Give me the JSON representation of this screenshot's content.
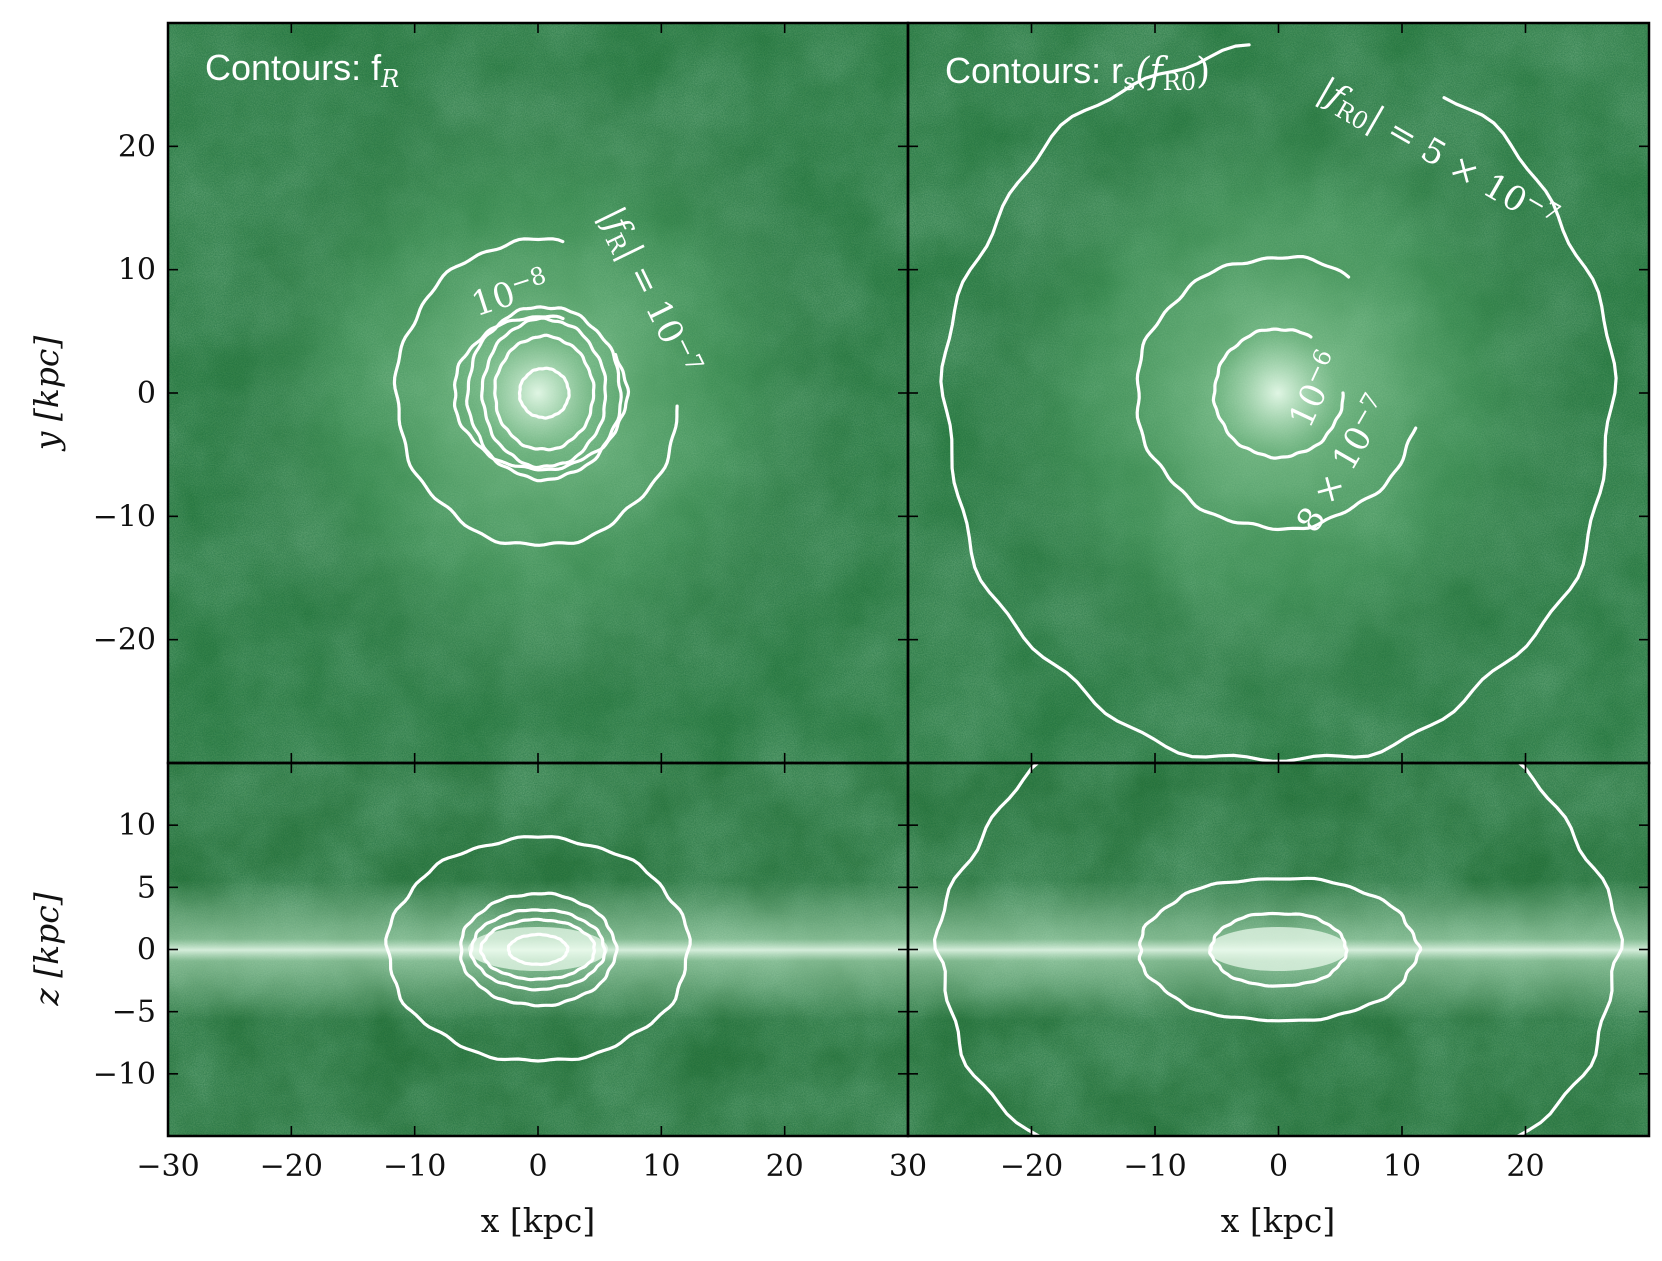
{
  "chart_data": {
    "type": "heatmap",
    "colormap": {
      "low": "#0f2414",
      "mid": "#4f9f62",
      "high": "#e8fbeb"
    },
    "contour_color": "#ffffff",
    "panels": [
      {
        "id": "top-left",
        "projection": "x-y",
        "title": "Contours: f",
        "title_sub": "R",
        "xlim": [
          -30,
          30
        ],
        "ylim": [
          -30,
          30
        ],
        "yticks": [
          20,
          10,
          0,
          -10,
          -20
        ],
        "ytick_labels": [
          "20",
          "10",
          "0",
          "−10",
          "−20"
        ],
        "ylabel": "y [kpc]",
        "contours": [
          {
            "shape": "arc",
            "rx": 11.5,
            "ry": 12.4,
            "cx": 0,
            "cy": 0,
            "start_deg": 80,
            "end_deg": 355
          },
          {
            "shape": "arc",
            "rx": 7.0,
            "ry": 6.2,
            "cx": 0.2,
            "cy": 0,
            "start_deg": 75,
            "end_deg": 390
          },
          {
            "shape": "ring",
            "rx": 6.2,
            "ry": 7.0,
            "cx": 0.5,
            "cy": 0
          },
          {
            "shape": "ring",
            "rx": 5.0,
            "ry": 6.0,
            "cx": 0.5,
            "cy": 0
          },
          {
            "shape": "ring",
            "rx": 4.0,
            "ry": 4.6,
            "cx": 0.5,
            "cy": 0
          },
          {
            "shape": "ring",
            "rx": 2.0,
            "ry": 2.0,
            "cx": 0.5,
            "cy": 0
          }
        ],
        "labels": [
          {
            "text": "10",
            "sup": "−8",
            "x": -5,
            "y": 6.2,
            "rotate": -18
          },
          {
            "text": "|f",
            "sub": "R",
            "rest": "| = 10",
            "sup": "−7",
            "x": 5,
            "y": 14.5,
            "rotate": 64
          }
        ]
      },
      {
        "id": "top-right",
        "projection": "x-y",
        "title": "Contours: r",
        "title_sub": "s",
        "title_rest": "(f",
        "title_sub2": "R0",
        "title_close": ")",
        "xlim": [
          -30,
          30
        ],
        "ylim": [
          -30,
          30
        ],
        "contours": [
          {
            "shape": "arc",
            "rx": 27,
            "ry": 29,
            "cx": 0,
            "cy": -1,
            "start_deg": 95,
            "end_deg": 420
          },
          {
            "shape": "arc",
            "rx": 11.5,
            "ry": 11.0,
            "cx": 0,
            "cy": 0,
            "start_deg": 60,
            "end_deg": 345
          },
          {
            "shape": "arc",
            "rx": 5.2,
            "ry": 5.2,
            "cx": 0,
            "cy": 0,
            "start_deg": 60,
            "end_deg": 360
          }
        ],
        "labels": [
          {
            "text": "|f",
            "sub": "R0",
            "rest": "| = 5 × 10",
            "sup": "−7",
            "x": 3,
            "y": 24,
            "rotate": 30
          },
          {
            "text": "10",
            "sup": "−6",
            "x": 2.5,
            "y": -3,
            "rotate": -65
          },
          {
            "text": "8 × 10",
            "sup": "−7",
            "x": 3,
            "y": -11.5,
            "rotate": -60
          }
        ]
      },
      {
        "id": "bottom-left",
        "projection": "x-z",
        "xlim": [
          -30,
          30
        ],
        "ylim": [
          -15,
          15
        ],
        "xticks": [
          -30,
          -20,
          -10,
          0,
          10,
          20
        ],
        "xtick_labels": [
          "−30",
          "−20",
          "−10",
          "0",
          "10",
          "20"
        ],
        "yticks": [
          10,
          5,
          0,
          -5,
          -10
        ],
        "ytick_labels": [
          "10",
          "5",
          "0",
          "−5",
          "−10"
        ],
        "xlabel": "x [kpc]",
        "ylabel": "z [kpc]",
        "contours": [
          {
            "shape": "ring",
            "rx": 12.2,
            "ry": 9.0,
            "cx": 0,
            "cy": 0
          },
          {
            "shape": "ring",
            "rx": 6.3,
            "ry": 4.5,
            "cx": 0,
            "cy": 0
          },
          {
            "shape": "ring",
            "rx": 5.4,
            "ry": 3.2,
            "cx": 0,
            "cy": 0
          },
          {
            "shape": "ring",
            "rx": 4.6,
            "ry": 2.4,
            "cx": 0,
            "cy": 0
          },
          {
            "shape": "ring",
            "rx": 2.4,
            "ry": 1.2,
            "cx": 0,
            "cy": 0
          }
        ]
      },
      {
        "id": "bottom-right",
        "projection": "x-z",
        "xlim": [
          -30,
          30
        ],
        "ylim": [
          -15,
          15
        ],
        "xticks": [
          30,
          -20,
          -10,
          0,
          10,
          20
        ],
        "xtick_labels": [
          "30",
          "−20",
          "−10",
          "0",
          "10",
          "20"
        ],
        "xlabel": "x [kpc]",
        "contours": [
          {
            "shape": "lens",
            "rx": 27.5,
            "ry": 20.5,
            "cx": 0,
            "cy": -0.5
          },
          {
            "shape": "lens",
            "rx": 11.3,
            "ry": 5.7,
            "cx": 0,
            "cy": 0
          },
          {
            "shape": "lens",
            "rx": 5.5,
            "ry": 2.9,
            "cx": 0,
            "cy": 0
          }
        ]
      }
    ]
  }
}
